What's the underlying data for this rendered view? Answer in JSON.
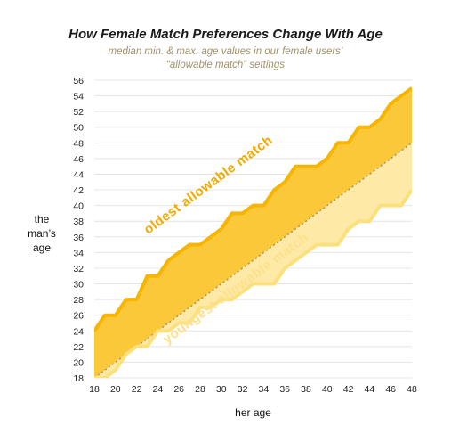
{
  "chart_data": {
    "type": "area",
    "title": "How Female Match Preferences Change With Age",
    "subtitle_line1": "median min. & max. age values in our female users’",
    "subtitle_line2": "“allowable match” settings",
    "xlabel": "her age",
    "ylabel_lines": [
      "the",
      "man’s",
      "age"
    ],
    "xlim": [
      18,
      48
    ],
    "ylim": [
      18,
      56
    ],
    "x_ticks": [
      18,
      20,
      22,
      24,
      26,
      28,
      30,
      32,
      34,
      36,
      38,
      40,
      42,
      44,
      46,
      48
    ],
    "y_ticks": [
      18,
      20,
      22,
      24,
      26,
      28,
      30,
      32,
      34,
      36,
      38,
      40,
      42,
      44,
      46,
      48,
      50,
      52,
      54,
      56
    ],
    "grid": "horizontal",
    "x": [
      18,
      19,
      20,
      21,
      22,
      23,
      24,
      25,
      26,
      27,
      28,
      29,
      30,
      31,
      32,
      33,
      34,
      35,
      36,
      37,
      38,
      39,
      40,
      41,
      42,
      43,
      44,
      45,
      46,
      47,
      48
    ],
    "series": [
      {
        "name": "oldest allowable match",
        "values": [
          24,
          26,
          26,
          28,
          28,
          31,
          31,
          33,
          34,
          35,
          35,
          36,
          37,
          39,
          39,
          40,
          40,
          42,
          43,
          45,
          45,
          45,
          46,
          48,
          48,
          50,
          50,
          51,
          53,
          54,
          55
        ]
      },
      {
        "name": "youngest allowable match",
        "values": [
          18,
          18,
          19,
          21,
          22,
          22,
          24,
          24,
          25,
          25,
          27,
          27,
          28,
          28,
          29,
          30,
          30,
          30,
          32,
          33,
          34,
          35,
          35,
          35,
          37,
          38,
          38,
          40,
          40,
          40,
          42
        ]
      }
    ],
    "reference_line": "her own age (dotted diagonal)",
    "colors": {
      "upper_band": "#fbc83a",
      "upper_line": "#f7b500",
      "lower_band": "#feeaa6",
      "lower_line": "#fbe07e",
      "upper_label": "#f2aa00",
      "lower_label": "#fde089",
      "diagonal": "#a8956a",
      "grid": "#e4e4e4"
    }
  }
}
